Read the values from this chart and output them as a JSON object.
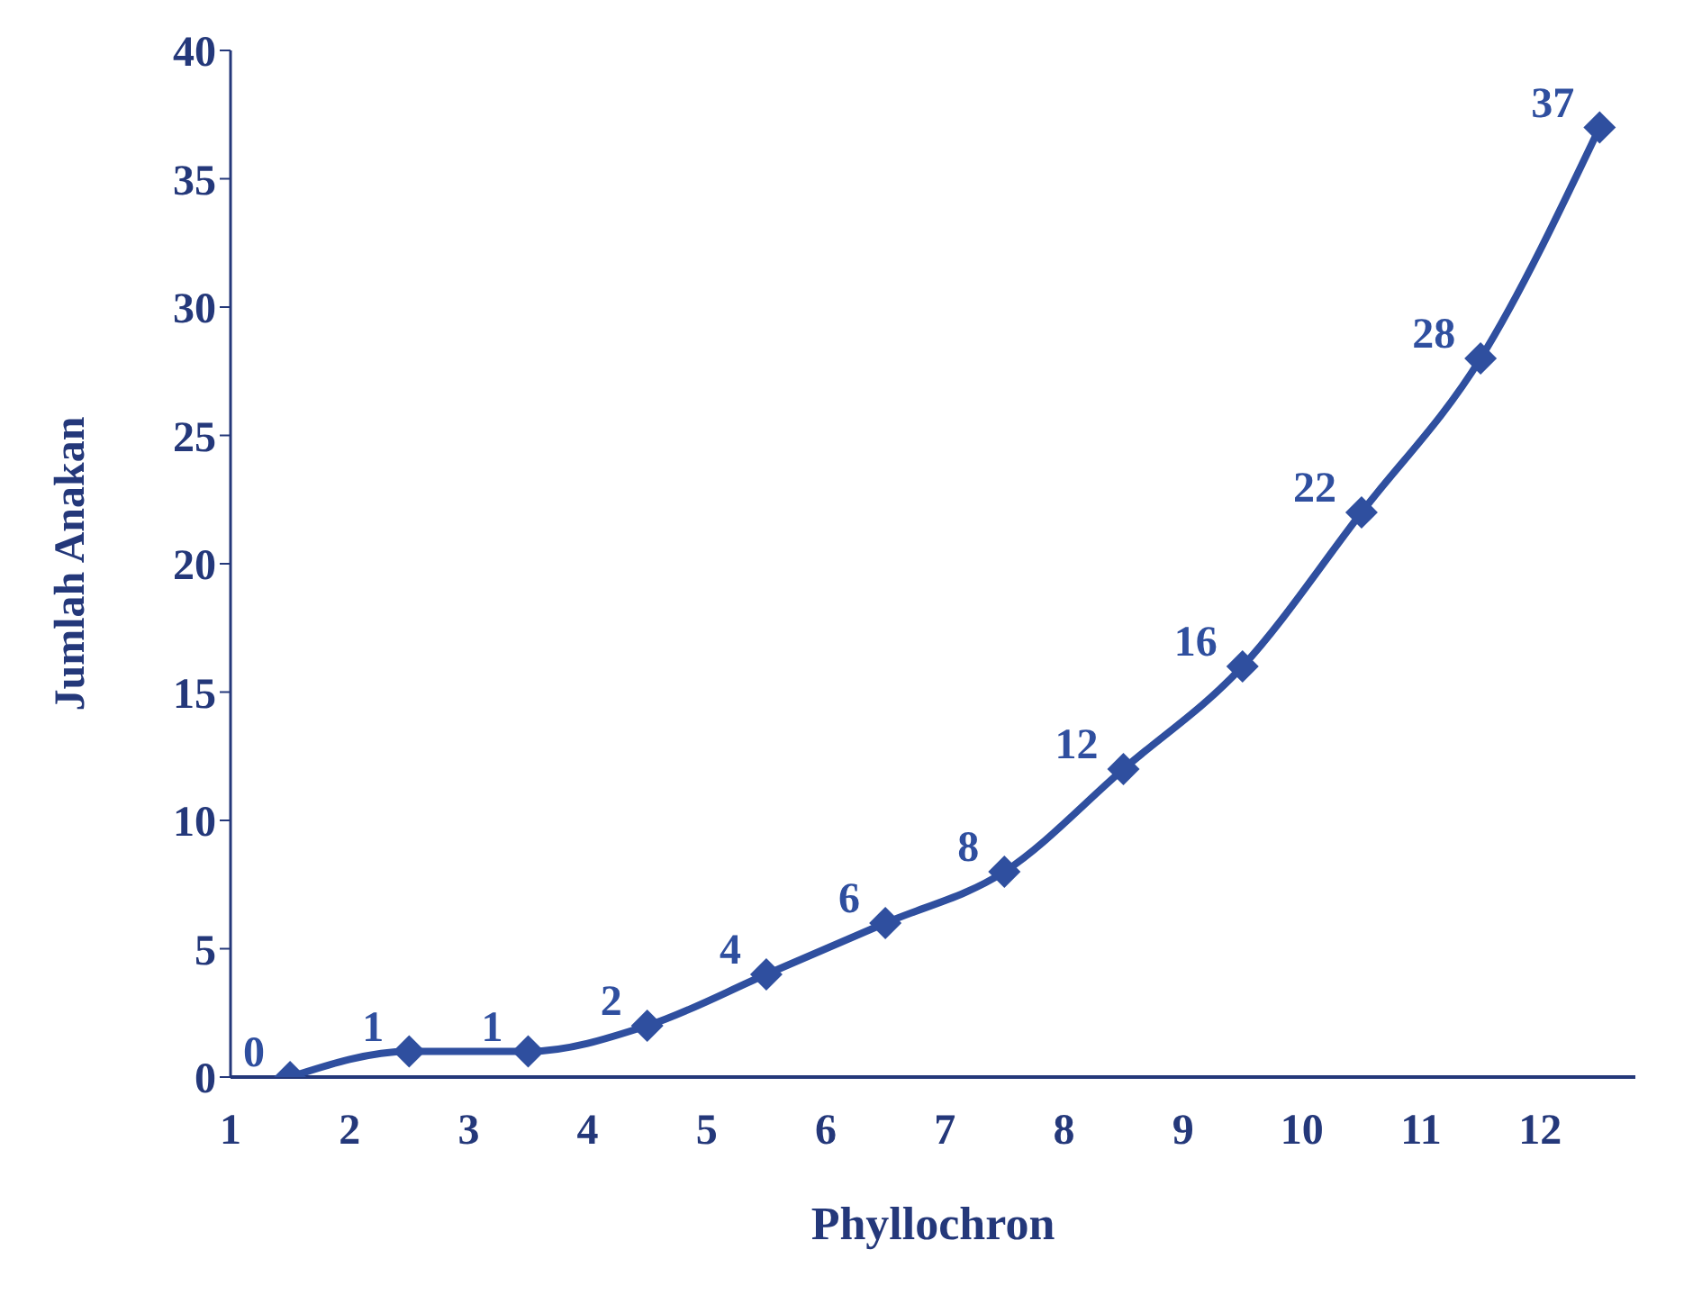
{
  "chart_data": {
    "type": "line",
    "xlabel": "Phyllochron",
    "ylabel": "Jumlah Anakan",
    "x": [
      1.5,
      2.5,
      3.5,
      4.5,
      5.5,
      6.5,
      7.5,
      8.5,
      9.5,
      10.5,
      11.5,
      12.5
    ],
    "series": [
      {
        "color": "#2f4f9f",
        "values": [
          0,
          1,
          1,
          2,
          4,
          6,
          8,
          12,
          16,
          22,
          28,
          37
        ]
      }
    ],
    "xlim": [
      1,
      12.8
    ],
    "xticks": [
      1,
      2,
      3,
      4,
      5,
      6,
      7,
      8,
      9,
      10,
      11,
      12
    ],
    "ylim": [
      0,
      40
    ],
    "yticks": [
      0,
      5,
      10,
      15,
      20,
      25,
      30,
      35,
      40
    ],
    "grid": false,
    "legend": false,
    "marker": "diamond",
    "line_style": "solid",
    "data_labels": true
  }
}
